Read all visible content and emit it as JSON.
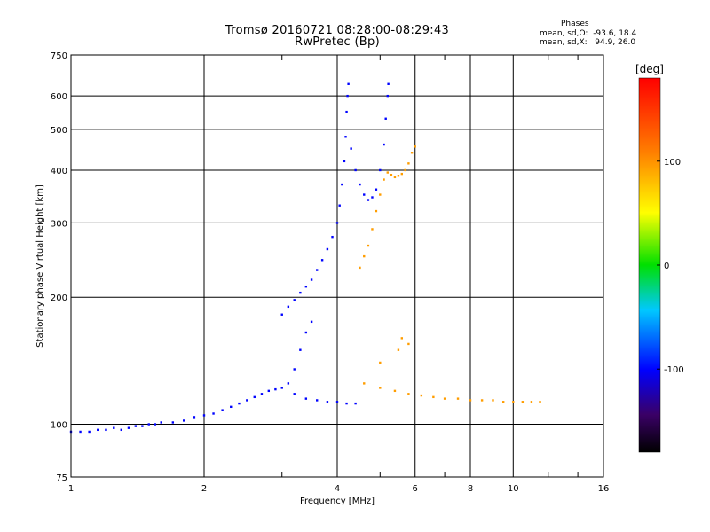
{
  "title_line1": "Tromsø 20160721 08:28:00-08:29:43",
  "title_line2": "RwPretec (Bp)",
  "phases": {
    "title": "Phases",
    "line_o": "mean, sd,O:  -93.6, 18.4",
    "line_x": "mean, sd,X:   94.9, 26.0"
  },
  "colors": {
    "grid": "#000000",
    "axis": "#000000"
  },
  "chart_data": {
    "type": "scatter",
    "xlabel": "Frequency [MHz]",
    "ylabel": "Stationary phase Virtual Height [km]",
    "xscale": "log",
    "yscale": "log",
    "xlim": [
      1,
      16
    ],
    "ylim": [
      75,
      750
    ],
    "x_ticks": [
      1,
      2,
      4,
      6,
      8,
      10,
      16
    ],
    "x_tick_labels": [
      "1",
      "2",
      "4",
      "6",
      "8",
      "10",
      "16"
    ],
    "x_major_grid": [
      2,
      4,
      6,
      8,
      10
    ],
    "x_minor_ticks": [
      3,
      5,
      7,
      9,
      12,
      14
    ],
    "y_ticks": [
      75,
      100,
      200,
      300,
      400,
      500,
      600,
      750
    ],
    "y_tick_labels": [
      "75",
      "100",
      "200",
      "300",
      "400",
      "500",
      "600",
      "750"
    ],
    "grid": true,
    "colorbar": {
      "label": "[deg]",
      "range": [
        -180,
        180
      ],
      "ticks": [
        100,
        0,
        -100
      ],
      "tick_labels": [
        "100",
        "0",
        "-100"
      ]
    },
    "series": [
      {
        "name": "O",
        "color_value": -100,
        "points": [
          [
            1.0,
            96
          ],
          [
            1.05,
            96
          ],
          [
            1.1,
            96
          ],
          [
            1.15,
            97
          ],
          [
            1.2,
            97
          ],
          [
            1.25,
            98
          ],
          [
            1.3,
            97
          ],
          [
            1.35,
            98
          ],
          [
            1.4,
            99
          ],
          [
            1.45,
            99
          ],
          [
            1.5,
            100
          ],
          [
            1.55,
            100
          ],
          [
            1.6,
            101
          ],
          [
            1.7,
            101
          ],
          [
            1.8,
            102
          ],
          [
            1.9,
            104
          ],
          [
            2.0,
            105
          ],
          [
            2.1,
            106
          ],
          [
            2.2,
            108
          ],
          [
            2.3,
            110
          ],
          [
            2.4,
            112
          ],
          [
            2.5,
            114
          ],
          [
            2.6,
            116
          ],
          [
            2.7,
            118
          ],
          [
            2.8,
            120
          ],
          [
            2.9,
            121
          ],
          [
            3.0,
            122
          ],
          [
            3.1,
            125
          ],
          [
            3.2,
            135
          ],
          [
            3.3,
            150
          ],
          [
            3.4,
            165
          ],
          [
            3.5,
            175
          ],
          [
            3.0,
            182
          ],
          [
            3.1,
            190
          ],
          [
            3.2,
            197
          ],
          [
            3.3,
            205
          ],
          [
            3.4,
            212
          ],
          [
            3.5,
            220
          ],
          [
            3.6,
            232
          ],
          [
            3.7,
            245
          ],
          [
            3.8,
            260
          ],
          [
            3.9,
            278
          ],
          [
            4.0,
            300
          ],
          [
            4.05,
            330
          ],
          [
            4.1,
            370
          ],
          [
            4.15,
            420
          ],
          [
            4.18,
            480
          ],
          [
            4.2,
            550
          ],
          [
            4.22,
            600
          ],
          [
            4.24,
            640
          ],
          [
            4.3,
            450
          ],
          [
            4.4,
            400
          ],
          [
            4.5,
            370
          ],
          [
            4.6,
            350
          ],
          [
            4.7,
            340
          ],
          [
            4.8,
            345
          ],
          [
            4.9,
            360
          ],
          [
            5.0,
            400
          ],
          [
            5.1,
            460
          ],
          [
            5.15,
            530
          ],
          [
            5.2,
            600
          ],
          [
            5.22,
            640
          ],
          [
            3.2,
            118
          ],
          [
            3.4,
            115
          ],
          [
            3.6,
            114
          ],
          [
            3.8,
            113
          ],
          [
            4.0,
            113
          ],
          [
            4.2,
            112
          ],
          [
            4.4,
            112
          ]
        ]
      },
      {
        "name": "X",
        "color_value": 95,
        "points": [
          [
            4.5,
            235
          ],
          [
            4.6,
            250
          ],
          [
            4.7,
            265
          ],
          [
            4.8,
            290
          ],
          [
            4.9,
            320
          ],
          [
            5.0,
            350
          ],
          [
            5.1,
            380
          ],
          [
            5.2,
            395
          ],
          [
            5.3,
            390
          ],
          [
            5.4,
            385
          ],
          [
            5.5,
            388
          ],
          [
            5.6,
            392
          ],
          [
            5.7,
            400
          ],
          [
            5.8,
            415
          ],
          [
            5.9,
            440
          ],
          [
            6.0,
            455
          ],
          [
            4.6,
            125
          ],
          [
            5.0,
            122
          ],
          [
            5.4,
            120
          ],
          [
            5.8,
            118
          ],
          [
            6.2,
            117
          ],
          [
            6.6,
            116
          ],
          [
            7.0,
            115
          ],
          [
            7.5,
            115
          ],
          [
            8.0,
            114
          ],
          [
            8.5,
            114
          ],
          [
            9.0,
            114
          ],
          [
            9.5,
            113
          ],
          [
            10.0,
            113
          ],
          [
            10.5,
            113
          ],
          [
            11.0,
            113
          ],
          [
            11.5,
            113
          ],
          [
            5.0,
            140
          ],
          [
            5.5,
            150
          ],
          [
            5.6,
            160
          ],
          [
            5.8,
            155
          ]
        ]
      }
    ]
  }
}
